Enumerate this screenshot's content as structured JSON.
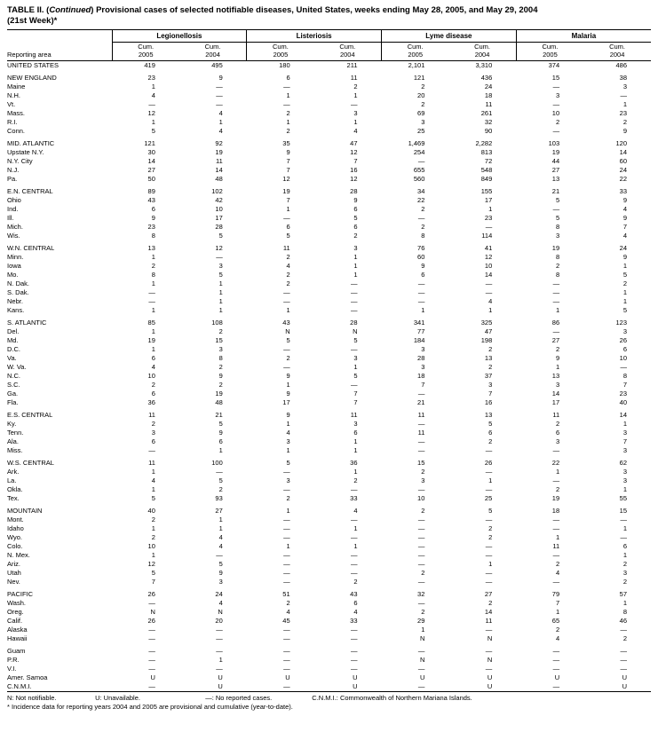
{
  "title": {
    "part1": "TABLE II. (",
    "continued": "Continued",
    "part2": ") Provisional cases of selected notifiable diseases, United States, weeks ending May 28, 2005, and May 29, 2004",
    "line2": "(21st Week)*"
  },
  "header": {
    "reporting_area_label": "Reporting area",
    "group_labels": [
      "Legionellosis",
      "Listeriosis",
      "Lyme disease",
      "Malaria"
    ],
    "cum_label": "Cum.",
    "year_labels": [
      "2005",
      "2004",
      "2005",
      "2004",
      "2005",
      "2004",
      "2005",
      "2004"
    ]
  },
  "groups": [
    {
      "rows": [
        {
          "area": "UNITED STATES",
          "values": [
            "419",
            "495",
            "180",
            "211",
            "2,101",
            "3,310",
            "374",
            "486"
          ]
        }
      ]
    },
    {
      "rows": [
        {
          "area": "NEW ENGLAND",
          "values": [
            "23",
            "9",
            "6",
            "11",
            "121",
            "436",
            "15",
            "38"
          ]
        },
        {
          "area": "Maine",
          "values": [
            "1",
            "—",
            "—",
            "2",
            "2",
            "24",
            "—",
            "3"
          ]
        },
        {
          "area": "N.H.",
          "values": [
            "4",
            "—",
            "1",
            "1",
            "20",
            "18",
            "3",
            "—"
          ]
        },
        {
          "area": "Vt.",
          "values": [
            "—",
            "—",
            "—",
            "—",
            "2",
            "11",
            "—",
            "1"
          ]
        },
        {
          "area": "Mass.",
          "values": [
            "12",
            "4",
            "2",
            "3",
            "69",
            "261",
            "10",
            "23"
          ]
        },
        {
          "area": "R.I.",
          "values": [
            "1",
            "1",
            "1",
            "1",
            "3",
            "32",
            "2",
            "2"
          ]
        },
        {
          "area": "Conn.",
          "values": [
            "5",
            "4",
            "2",
            "4",
            "25",
            "90",
            "—",
            "9"
          ]
        }
      ]
    },
    {
      "rows": [
        {
          "area": "MID. ATLANTIC",
          "values": [
            "121",
            "92",
            "35",
            "47",
            "1,469",
            "2,282",
            "103",
            "120"
          ]
        },
        {
          "area": "Upstate N.Y.",
          "values": [
            "30",
            "19",
            "9",
            "12",
            "254",
            "813",
            "19",
            "14"
          ]
        },
        {
          "area": "N.Y. City",
          "values": [
            "14",
            "11",
            "7",
            "7",
            "—",
            "72",
            "44",
            "60"
          ]
        },
        {
          "area": "N.J.",
          "values": [
            "27",
            "14",
            "7",
            "16",
            "655",
            "548",
            "27",
            "24"
          ]
        },
        {
          "area": "Pa.",
          "values": [
            "50",
            "48",
            "12",
            "12",
            "560",
            "849",
            "13",
            "22"
          ]
        }
      ]
    },
    {
      "rows": [
        {
          "area": "E.N. CENTRAL",
          "values": [
            "89",
            "102",
            "19",
            "28",
            "34",
            "155",
            "21",
            "33"
          ]
        },
        {
          "area": "Ohio",
          "values": [
            "43",
            "42",
            "7",
            "9",
            "22",
            "17",
            "5",
            "9"
          ]
        },
        {
          "area": "Ind.",
          "values": [
            "6",
            "10",
            "1",
            "6",
            "2",
            "1",
            "—",
            "4"
          ]
        },
        {
          "area": "Ill.",
          "values": [
            "9",
            "17",
            "—",
            "5",
            "—",
            "23",
            "5",
            "9"
          ]
        },
        {
          "area": "Mich.",
          "values": [
            "23",
            "28",
            "6",
            "6",
            "2",
            "—",
            "8",
            "7"
          ]
        },
        {
          "area": "Wis.",
          "values": [
            "8",
            "5",
            "5",
            "2",
            "8",
            "114",
            "3",
            "4"
          ]
        }
      ]
    },
    {
      "rows": [
        {
          "area": "W.N. CENTRAL",
          "values": [
            "13",
            "12",
            "11",
            "3",
            "76",
            "41",
            "19",
            "24"
          ]
        },
        {
          "area": "Minn.",
          "values": [
            "1",
            "—",
            "2",
            "1",
            "60",
            "12",
            "8",
            "9"
          ]
        },
        {
          "area": "Iowa",
          "values": [
            "2",
            "3",
            "4",
            "1",
            "9",
            "10",
            "2",
            "1"
          ]
        },
        {
          "area": "Mo.",
          "values": [
            "8",
            "5",
            "2",
            "1",
            "6",
            "14",
            "8",
            "5"
          ]
        },
        {
          "area": "N. Dak.",
          "values": [
            "1",
            "1",
            "2",
            "—",
            "—",
            "—",
            "—",
            "2"
          ]
        },
        {
          "area": "S. Dak.",
          "values": [
            "—",
            "1",
            "—",
            "—",
            "—",
            "—",
            "—",
            "1"
          ]
        },
        {
          "area": "Nebr.",
          "values": [
            "—",
            "1",
            "—",
            "—",
            "—",
            "4",
            "—",
            "1"
          ]
        },
        {
          "area": "Kans.",
          "values": [
            "1",
            "1",
            "1",
            "—",
            "1",
            "1",
            "1",
            "5"
          ]
        }
      ]
    },
    {
      "rows": [
        {
          "area": "S. ATLANTIC",
          "values": [
            "85",
            "108",
            "43",
            "28",
            "341",
            "325",
            "86",
            "123"
          ]
        },
        {
          "area": "Del.",
          "values": [
            "1",
            "2",
            "N",
            "N",
            "77",
            "47",
            "—",
            "3"
          ]
        },
        {
          "area": "Md.",
          "values": [
            "19",
            "15",
            "5",
            "5",
            "184",
            "198",
            "27",
            "26"
          ]
        },
        {
          "area": "D.C.",
          "values": [
            "1",
            "3",
            "—",
            "—",
            "3",
            "2",
            "2",
            "6"
          ]
        },
        {
          "area": "Va.",
          "values": [
            "6",
            "8",
            "2",
            "3",
            "28",
            "13",
            "9",
            "10"
          ]
        },
        {
          "area": "W. Va.",
          "values": [
            "4",
            "2",
            "—",
            "1",
            "3",
            "2",
            "1",
            "—"
          ]
        },
        {
          "area": "N.C.",
          "values": [
            "10",
            "9",
            "9",
            "5",
            "18",
            "37",
            "13",
            "8"
          ]
        },
        {
          "area": "S.C.",
          "values": [
            "2",
            "2",
            "1",
            "—",
            "7",
            "3",
            "3",
            "7"
          ]
        },
        {
          "area": "Ga.",
          "values": [
            "6",
            "19",
            "9",
            "7",
            "—",
            "7",
            "14",
            "23"
          ]
        },
        {
          "area": "Fla.",
          "values": [
            "36",
            "48",
            "17",
            "7",
            "21",
            "16",
            "17",
            "40"
          ]
        }
      ]
    },
    {
      "rows": [
        {
          "area": "E.S. CENTRAL",
          "values": [
            "11",
            "21",
            "9",
            "11",
            "11",
            "13",
            "11",
            "14"
          ]
        },
        {
          "area": "Ky.",
          "values": [
            "2",
            "5",
            "1",
            "3",
            "—",
            "5",
            "2",
            "1"
          ]
        },
        {
          "area": "Tenn.",
          "values": [
            "3",
            "9",
            "4",
            "6",
            "11",
            "6",
            "6",
            "3"
          ]
        },
        {
          "area": "Ala.",
          "values": [
            "6",
            "6",
            "3",
            "1",
            "—",
            "2",
            "3",
            "7"
          ]
        },
        {
          "area": "Miss.",
          "values": [
            "—",
            "1",
            "1",
            "1",
            "—",
            "—",
            "—",
            "3"
          ]
        }
      ]
    },
    {
      "rows": [
        {
          "area": "W.S. CENTRAL",
          "values": [
            "11",
            "100",
            "5",
            "36",
            "15",
            "26",
            "22",
            "62"
          ]
        },
        {
          "area": "Ark.",
          "values": [
            "1",
            "—",
            "—",
            "1",
            "2",
            "—",
            "1",
            "3"
          ]
        },
        {
          "area": "La.",
          "values": [
            "4",
            "5",
            "3",
            "2",
            "3",
            "1",
            "—",
            "3"
          ]
        },
        {
          "area": "Okla.",
          "values": [
            "1",
            "2",
            "—",
            "—",
            "—",
            "—",
            "2",
            "1"
          ]
        },
        {
          "area": "Tex.",
          "values": [
            "5",
            "93",
            "2",
            "33",
            "10",
            "25",
            "19",
            "55"
          ]
        }
      ]
    },
    {
      "rows": [
        {
          "area": "MOUNTAIN",
          "values": [
            "40",
            "27",
            "1",
            "4",
            "2",
            "5",
            "18",
            "15"
          ]
        },
        {
          "area": "Mont.",
          "values": [
            "2",
            "1",
            "—",
            "—",
            "—",
            "—",
            "—",
            "—"
          ]
        },
        {
          "area": "Idaho",
          "values": [
            "1",
            "1",
            "—",
            "1",
            "—",
            "2",
            "—",
            "1"
          ]
        },
        {
          "area": "Wyo.",
          "values": [
            "2",
            "4",
            "—",
            "—",
            "—",
            "2",
            "1",
            "—"
          ]
        },
        {
          "area": "Colo.",
          "values": [
            "10",
            "4",
            "1",
            "1",
            "—",
            "—",
            "11",
            "6"
          ]
        },
        {
          "area": "N. Mex.",
          "values": [
            "1",
            "—",
            "—",
            "—",
            "—",
            "—",
            "—",
            "1"
          ]
        },
        {
          "area": "Ariz.",
          "values": [
            "12",
            "5",
            "—",
            "—",
            "—",
            "1",
            "2",
            "2"
          ]
        },
        {
          "area": "Utah",
          "values": [
            "5",
            "9",
            "—",
            "—",
            "2",
            "—",
            "4",
            "3"
          ]
        },
        {
          "area": "Nev.",
          "values": [
            "7",
            "3",
            "—",
            "2",
            "—",
            "—",
            "—",
            "2"
          ]
        }
      ]
    },
    {
      "rows": [
        {
          "area": "PACIFIC",
          "values": [
            "26",
            "24",
            "51",
            "43",
            "32",
            "27",
            "79",
            "57"
          ]
        },
        {
          "area": "Wash.",
          "values": [
            "—",
            "4",
            "2",
            "6",
            "—",
            "2",
            "7",
            "1"
          ]
        },
        {
          "area": "Oreg.",
          "values": [
            "N",
            "N",
            "4",
            "4",
            "2",
            "14",
            "1",
            "8"
          ]
        },
        {
          "area": "Calif.",
          "values": [
            "26",
            "20",
            "45",
            "33",
            "29",
            "11",
            "65",
            "46"
          ]
        },
        {
          "area": "Alaska",
          "values": [
            "—",
            "—",
            "—",
            "—",
            "1",
            "—",
            "2",
            "—"
          ]
        },
        {
          "area": "Hawaii",
          "values": [
            "—",
            "—",
            "—",
            "—",
            "N",
            "N",
            "4",
            "2"
          ]
        }
      ]
    },
    {
      "rows": [
        {
          "area": "Guam",
          "values": [
            "—",
            "—",
            "—",
            "—",
            "—",
            "—",
            "—",
            "—"
          ]
        },
        {
          "area": "P.R.",
          "values": [
            "—",
            "1",
            "—",
            "—",
            "N",
            "N",
            "—",
            "—"
          ]
        },
        {
          "area": "V.I.",
          "values": [
            "—",
            "—",
            "—",
            "—",
            "—",
            "—",
            "—",
            "—"
          ]
        },
        {
          "area": "Amer. Samoa",
          "values": [
            "U",
            "U",
            "U",
            "U",
            "U",
            "U",
            "U",
            "U"
          ]
        },
        {
          "area": "C.N.M.I.",
          "values": [
            "—",
            "U",
            "—",
            "U",
            "—",
            "U",
            "—",
            "U"
          ]
        }
      ]
    }
  ],
  "footnotes": {
    "legend": [
      "N: Not notifiable.",
      "U: Unavailable.",
      "—: No reported cases.",
      "C.N.M.I.: Commonwealth of Northern Mariana Islands."
    ],
    "note": "* Incidence data for reporting years 2004 and 2005 are provisional and cumulative (year-to-date)."
  }
}
